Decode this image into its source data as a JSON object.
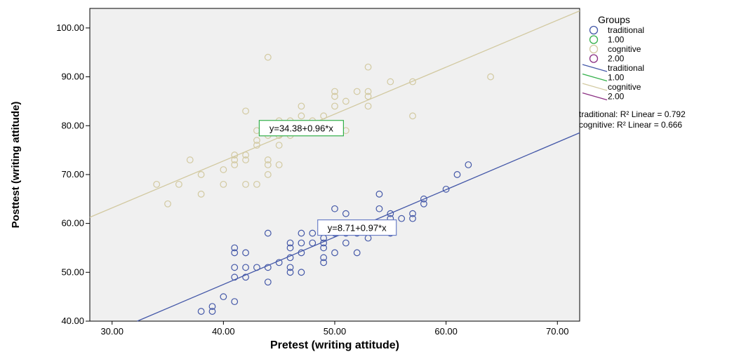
{
  "chart_data": {
    "type": "scatter",
    "xlabel": "Pretest (writing attitude)",
    "ylabel": "Posttest (writing attitude)",
    "xlim": [
      28,
      72
    ],
    "ylim": [
      40,
      104
    ],
    "x_ticks": [
      "30.00",
      "40.00",
      "50.00",
      "60.00",
      "70.00"
    ],
    "y_ticks": [
      "40.00",
      "50.00",
      "60.00",
      "70.00",
      "80.00",
      "90.00",
      "100.00"
    ],
    "grid": false,
    "legend_position": "right",
    "legend_title": "Groups",
    "legend_items": [
      {
        "label": "traditional",
        "kind": "marker",
        "color": "#4458a8"
      },
      {
        "label": "1.00",
        "kind": "marker",
        "color": "#33b04a"
      },
      {
        "label": "cognitive",
        "kind": "marker",
        "color": "#d2c9a0"
      },
      {
        "label": "2.00",
        "kind": "marker",
        "color": "#8a2f82"
      },
      {
        "label": "traditional",
        "kind": "line",
        "color": "#4458a8"
      },
      {
        "label": "1.00",
        "kind": "line",
        "color": "#33b04a"
      },
      {
        "label": "cognitive",
        "kind": "line",
        "color": "#d2c9a0"
      },
      {
        "label": "2.00",
        "kind": "line",
        "color": "#8a2f82"
      }
    ],
    "r2_labels": [
      {
        "group": "traditional",
        "text": "traditional: R² Linear = 0.792"
      },
      {
        "group": "cognitive",
        "text": "cognitive: R² Linear = 0.666"
      }
    ],
    "fit_lines": [
      {
        "name": "traditional",
        "intercept": 8.71,
        "slope": 0.97,
        "color": "#4458a8",
        "equation": "y=8.71+0.97*x",
        "equation_box_color": "#6b7fc7"
      },
      {
        "name": "cognitive",
        "intercept": 34.38,
        "slope": 0.96,
        "color": "#d2c9a0",
        "equation": "y=34.38+0.96*x",
        "equation_box_color": "#33b04a"
      }
    ],
    "series": [
      {
        "name": "traditional",
        "color": "#4458a8",
        "points": [
          [
            38,
            42
          ],
          [
            39,
            42
          ],
          [
            39,
            43
          ],
          [
            40,
            45
          ],
          [
            41,
            44
          ],
          [
            41,
            49
          ],
          [
            41,
            51
          ],
          [
            41,
            54
          ],
          [
            41,
            55
          ],
          [
            42,
            49
          ],
          [
            42,
            51
          ],
          [
            42,
            54
          ],
          [
            43,
            51
          ],
          [
            44,
            48
          ],
          [
            44,
            51
          ],
          [
            44,
            58
          ],
          [
            45,
            52
          ],
          [
            46,
            50
          ],
          [
            46,
            51
          ],
          [
            46,
            53
          ],
          [
            46,
            55
          ],
          [
            46,
            56
          ],
          [
            47,
            50
          ],
          [
            47,
            54
          ],
          [
            47,
            56
          ],
          [
            47,
            58
          ],
          [
            48,
            56
          ],
          [
            48,
            58
          ],
          [
            49,
            52
          ],
          [
            49,
            53
          ],
          [
            49,
            55
          ],
          [
            49,
            56
          ],
          [
            49,
            57
          ],
          [
            50,
            54
          ],
          [
            50,
            58
          ],
          [
            50,
            63
          ],
          [
            51,
            56
          ],
          [
            51,
            58
          ],
          [
            51,
            62
          ],
          [
            52,
            54
          ],
          [
            52,
            58
          ],
          [
            53,
            57
          ],
          [
            54,
            59
          ],
          [
            54,
            60
          ],
          [
            54,
            63
          ],
          [
            54,
            66
          ],
          [
            55,
            58
          ],
          [
            55,
            60
          ],
          [
            55,
            61
          ],
          [
            55,
            62
          ],
          [
            56,
            61
          ],
          [
            57,
            61
          ],
          [
            57,
            62
          ],
          [
            58,
            64
          ],
          [
            58,
            65
          ],
          [
            60,
            67
          ],
          [
            61,
            70
          ],
          [
            62,
            72
          ]
        ]
      },
      {
        "name": "cognitive",
        "color": "#d2c9a0",
        "points": [
          [
            34,
            68
          ],
          [
            35,
            64
          ],
          [
            36,
            68
          ],
          [
            37,
            73
          ],
          [
            38,
            66
          ],
          [
            38,
            70
          ],
          [
            40,
            68
          ],
          [
            40,
            71
          ],
          [
            41,
            72
          ],
          [
            41,
            73
          ],
          [
            41,
            74
          ],
          [
            42,
            68
          ],
          [
            42,
            73
          ],
          [
            42,
            74
          ],
          [
            42,
            83
          ],
          [
            43,
            68
          ],
          [
            43,
            76
          ],
          [
            43,
            77
          ],
          [
            43,
            79
          ],
          [
            44,
            70
          ],
          [
            44,
            72
          ],
          [
            44,
            73
          ],
          [
            44,
            78
          ],
          [
            44,
            94
          ],
          [
            45,
            72
          ],
          [
            45,
            76
          ],
          [
            45,
            78
          ],
          [
            45,
            81
          ],
          [
            46,
            78
          ],
          [
            46,
            81
          ],
          [
            47,
            82
          ],
          [
            47,
            84
          ],
          [
            48,
            79
          ],
          [
            48,
            81
          ],
          [
            49,
            82
          ],
          [
            50,
            84
          ],
          [
            50,
            86
          ],
          [
            50,
            87
          ],
          [
            51,
            79
          ],
          [
            51,
            85
          ],
          [
            52,
            87
          ],
          [
            53,
            84
          ],
          [
            53,
            86
          ],
          [
            53,
            87
          ],
          [
            53,
            92
          ],
          [
            55,
            89
          ],
          [
            57,
            82
          ],
          [
            57,
            89
          ],
          [
            64,
            90
          ]
        ]
      }
    ]
  }
}
